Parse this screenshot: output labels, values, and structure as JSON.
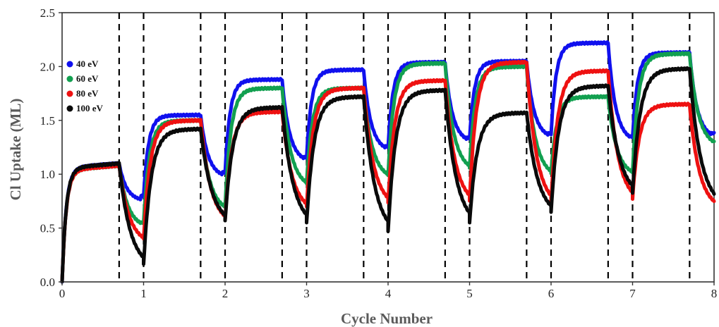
{
  "chart_data": {
    "type": "line",
    "title": "",
    "xlabel": "Cycle Number",
    "ylabel": "Cl Uptake (ML)",
    "xlim": [
      0,
      8
    ],
    "ylim": [
      0,
      2.5
    ],
    "x_ticks": [
      "0",
      "1",
      "2",
      "3",
      "4",
      "5",
      "6",
      "7",
      "8"
    ],
    "y_ticks": [
      "0.0",
      "0.5",
      "1.0",
      "1.5",
      "2.0",
      "2.5"
    ],
    "dashed_lines_x": [
      0.7,
      1,
      1.7,
      2,
      2.7,
      3,
      3.7,
      4,
      4.7,
      5,
      5.7,
      6,
      6.7,
      7,
      7.7
    ],
    "legend_position": "upper-left",
    "grid": false,
    "series": [
      {
        "name": "40 eV",
        "color": "#1010ee",
        "exposure_start": [
          0.0,
          1.04,
          1.44,
          1.57
        ],
        "exposure_end": [
          1.1,
          1.55,
          1.88,
          1.97,
          2.04,
          2.05,
          2.22,
          2.13
        ],
        "purge_end": [
          0.8,
          1.02,
          1.16,
          1.26,
          1.34,
          1.38,
          1.35,
          1.38
        ]
      },
      {
        "name": "60 eV",
        "color": "#12a050",
        "exposure_end": [
          1.08,
          1.5,
          1.8,
          1.8,
          2.03,
          2.0,
          1.72,
          2.12
        ],
        "purge_end": [
          0.55,
          0.7,
          0.92,
          1.0,
          1.07,
          1.02,
          1.03,
          1.3
        ]
      },
      {
        "name": "80 eV",
        "color": "#ee1111",
        "exposure_end": [
          1.08,
          1.5,
          1.58,
          1.8,
          1.87,
          2.04,
          1.96,
          1.65
        ],
        "purge_end": [
          0.4,
          0.58,
          0.7,
          0.74,
          0.76,
          0.74,
          0.78,
          0.72
        ]
      },
      {
        "name": "100 eV",
        "color": "#0a0a0a",
        "exposure_end": [
          1.1,
          1.42,
          1.62,
          1.72,
          1.78,
          1.57,
          1.82,
          1.98
        ],
        "purge_end": [
          0.17,
          0.57,
          0.55,
          0.47,
          0.55,
          0.65,
          0.83,
          0.73
        ]
      }
    ]
  }
}
